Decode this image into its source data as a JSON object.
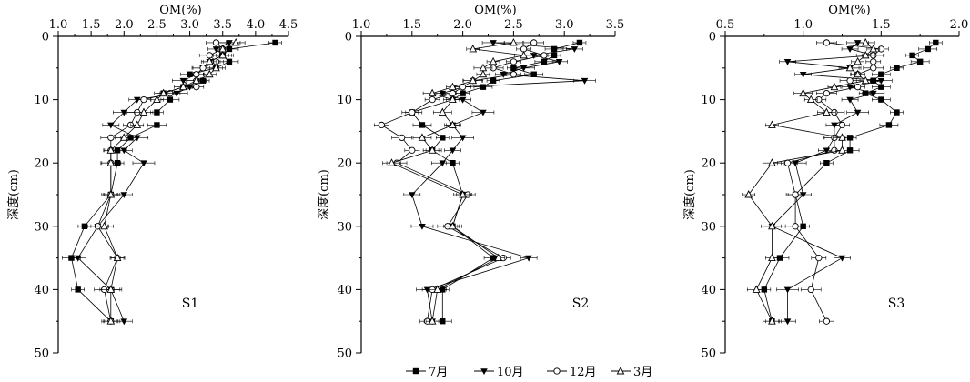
{
  "chart_data": [
    {
      "type": "line",
      "panel_label": "S1",
      "xlabel": "OM(%)",
      "ylabel": "深度(cm)",
      "xlim": [
        1.0,
        4.5
      ],
      "ylim": [
        0,
        50
      ],
      "x_ticks": [
        "1.0",
        "1.5",
        "2.0",
        "2.5",
        "3.0",
        "3.5",
        "4.0",
        "4.5"
      ],
      "y_ticks": [
        "0",
        "10",
        "20",
        "30",
        "40",
        "50"
      ],
      "series": [
        {
          "name": "7月",
          "marker": "square-filled",
          "depth": [
            1,
            2,
            3,
            4,
            5,
            6,
            7,
            8,
            9,
            10,
            12,
            14,
            16,
            18,
            20,
            25,
            30,
            35,
            40,
            45
          ],
          "values": [
            4.3,
            3.6,
            3.5,
            3.6,
            3.4,
            3.0,
            3.2,
            2.9,
            2.6,
            2.7,
            2.5,
            2.5,
            2.1,
            1.9,
            1.9,
            1.8,
            1.4,
            1.2,
            1.3,
            1.8
          ]
        },
        {
          "name": "10月",
          "marker": "triangle-down-filled",
          "depth": [
            1,
            2,
            3,
            4,
            5,
            6,
            7,
            8,
            9,
            10,
            12,
            14,
            16,
            18,
            20,
            25,
            30,
            35,
            40,
            45
          ],
          "values": [
            3.6,
            3.4,
            3.5,
            3.3,
            3.2,
            3.1,
            2.9,
            3.0,
            2.8,
            2.2,
            2.0,
            1.8,
            2.2,
            2.0,
            2.3,
            2.0,
            1.6,
            1.3,
            1.8,
            2.0
          ]
        },
        {
          "name": "12月",
          "marker": "circle-open",
          "depth": [
            1,
            2,
            3,
            4,
            5,
            6,
            7,
            8,
            9,
            10,
            12,
            14,
            16,
            18,
            20,
            25,
            30,
            35,
            40,
            45
          ],
          "values": [
            3.4,
            3.5,
            3.3,
            3.4,
            3.2,
            3.1,
            3.1,
            3.1,
            2.7,
            2.3,
            2.2,
            2.1,
            1.8,
            1.8,
            1.8,
            1.8,
            1.6,
            1.9,
            1.7,
            1.8
          ]
        },
        {
          "name": "3月",
          "marker": "triangle-up-open",
          "depth": [
            1,
            2,
            3,
            4,
            5,
            6,
            7,
            8,
            9,
            10,
            12,
            14,
            16,
            18,
            20,
            25,
            30,
            35,
            40,
            45
          ],
          "values": [
            3.7,
            3.5,
            3.5,
            3.3,
            3.4,
            3.3,
            3.1,
            2.9,
            2.6,
            2.5,
            2.3,
            2.2,
            2.0,
            1.8,
            1.8,
            1.8,
            1.7,
            1.9,
            1.8,
            1.8
          ]
        }
      ]
    },
    {
      "type": "line",
      "panel_label": "S2",
      "xlabel": "OM(%)",
      "ylabel": "深度(cm)",
      "xlim": [
        1.0,
        3.5
      ],
      "ylim": [
        0,
        50
      ],
      "x_ticks": [
        "1.0",
        "1.5",
        "2.0",
        "2.5",
        "3.0",
        "3.5"
      ],
      "y_ticks": [
        "0",
        "10",
        "20",
        "30",
        "40",
        "50"
      ],
      "series": [
        {
          "name": "7月",
          "marker": "square-filled",
          "depth": [
            1,
            2,
            3,
            4,
            5,
            6,
            7,
            8,
            9,
            10,
            12,
            14,
            16,
            18,
            20,
            25,
            30,
            35,
            40,
            45
          ],
          "values": [
            3.15,
            2.9,
            2.9,
            2.8,
            2.5,
            2.7,
            2.3,
            2.2,
            2.0,
            1.9,
            1.5,
            1.6,
            1.8,
            1.7,
            1.9,
            2.0,
            1.9,
            2.3,
            1.8,
            1.8
          ]
        },
        {
          "name": "10月",
          "marker": "triangle-down-filled",
          "depth": [
            1,
            2,
            3,
            4,
            5,
            6,
            7,
            8,
            9,
            10,
            12,
            14,
            16,
            18,
            20,
            25,
            30,
            35,
            40,
            45
          ],
          "values": [
            2.3,
            3.1,
            2.7,
            2.95,
            2.6,
            2.4,
            3.2,
            2.0,
            1.8,
            2.0,
            2.2,
            1.9,
            2.0,
            1.9,
            1.8,
            1.5,
            1.6,
            2.65,
            1.65,
            1.7
          ]
        },
        {
          "name": "12月",
          "marker": "circle-open",
          "depth": [
            1,
            2,
            3,
            4,
            5,
            6,
            7,
            8,
            9,
            10,
            12,
            14,
            16,
            18,
            20,
            25,
            30,
            35,
            40,
            45
          ],
          "values": [
            2.7,
            2.6,
            2.8,
            2.5,
            2.3,
            2.5,
            2.1,
            2.0,
            1.9,
            1.7,
            1.5,
            1.2,
            1.4,
            1.5,
            1.35,
            2.05,
            1.85,
            2.4,
            1.7,
            1.65
          ]
        },
        {
          "name": "3月",
          "marker": "triangle-up-open",
          "depth": [
            1,
            2,
            3,
            4,
            5,
            6,
            7,
            8,
            9,
            10,
            12,
            14,
            16,
            18,
            20,
            25,
            30,
            35,
            40,
            45
          ],
          "values": [
            2.5,
            2.1,
            2.6,
            2.3,
            2.2,
            2.2,
            2.1,
            1.9,
            1.7,
            1.9,
            1.8,
            1.9,
            1.6,
            1.7,
            1.3,
            2.0,
            1.9,
            2.35,
            1.75,
            1.7
          ]
        }
      ]
    },
    {
      "type": "line",
      "panel_label": "S3",
      "xlabel": "OM(%)",
      "ylabel": "深度(cm)",
      "xlim": [
        0.5,
        2.0
      ],
      "ylim": [
        0,
        50
      ],
      "x_ticks": [
        "0.5",
        "1.0",
        "1.5",
        "2.0"
      ],
      "y_ticks": [
        "0",
        "10",
        "20",
        "30",
        "40",
        "50"
      ],
      "series": [
        {
          "name": "7月",
          "marker": "square-filled",
          "depth": [
            1,
            2,
            3,
            4,
            5,
            6,
            7,
            8,
            9,
            10,
            12,
            14,
            16,
            18,
            20,
            25,
            30,
            35,
            40,
            45
          ],
          "values": [
            1.85,
            1.8,
            1.7,
            1.75,
            1.6,
            1.5,
            1.45,
            1.5,
            1.4,
            1.5,
            1.6,
            1.55,
            1.3,
            1.3,
            1.15,
            0.95,
            1.0,
            0.85,
            0.75,
            0.8
          ]
        },
        {
          "name": "10月",
          "marker": "triangle-down-filced",
          "depth": [
            1,
            2,
            3,
            4,
            5,
            6,
            7,
            8,
            9,
            10,
            12,
            14,
            16,
            18,
            20,
            25,
            30,
            35,
            40,
            45
          ],
          "values": [
            1.35,
            1.3,
            1.45,
            0.9,
            1.3,
            1.0,
            1.5,
            1.3,
            1.45,
            1.3,
            1.35,
            1.2,
            1.2,
            1.15,
            0.95,
            1.0,
            0.8,
            1.25,
            0.9,
            0.9
          ]
        },
        {
          "name": "12月",
          "marker": "circle-open",
          "depth": [
            1,
            2,
            3,
            4,
            5,
            6,
            7,
            8,
            9,
            10,
            12,
            14,
            16,
            18,
            20,
            25,
            30,
            35,
            40,
            45
          ],
          "values": [
            1.15,
            1.5,
            1.45,
            1.45,
            1.45,
            1.35,
            1.3,
            1.35,
            1.15,
            1.1,
            1.2,
            1.25,
            1.2,
            1.2,
            0.9,
            0.95,
            0.95,
            1.1,
            1.05,
            1.15
          ]
        },
        {
          "name": "3月",
          "marker": "triangle-up-open",
          "depth": [
            1,
            2,
            3,
            4,
            5,
            6,
            7,
            8,
            9,
            10,
            12,
            14,
            16,
            18,
            20,
            25,
            30,
            35,
            40,
            45
          ],
          "values": [
            1.4,
            1.45,
            1.4,
            1.35,
            1.3,
            1.35,
            1.4,
            1.2,
            1.0,
            1.05,
            1.15,
            0.8,
            1.25,
            1.25,
            0.8,
            0.65,
            0.8,
            0.8,
            0.7,
            0.8
          ]
        }
      ]
    }
  ],
  "legend": {
    "entries": [
      {
        "label": "7月",
        "marker": "square-filled"
      },
      {
        "label": "10月",
        "marker": "triangle-down-filled"
      },
      {
        "label": "12月",
        "marker": "circle-open"
      },
      {
        "label": "3月",
        "marker": "triangle-up-open"
      }
    ]
  }
}
